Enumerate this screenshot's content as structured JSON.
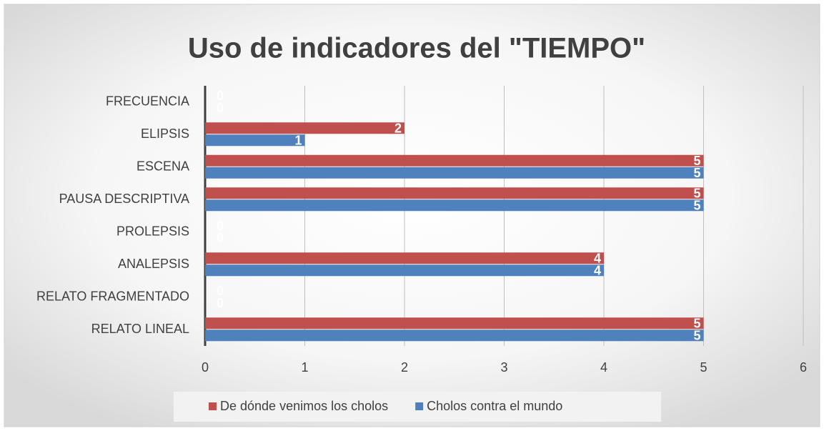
{
  "chart_data": {
    "type": "bar",
    "orientation": "horizontal",
    "title": "Uso de indicadores del \"TIEMPO\"",
    "categories": [
      "FRECUENCIA",
      "ELIPSIS",
      "ESCENA",
      "PAUSA DESCRIPTIVA",
      "PROLEPSIS",
      "ANALEPSIS",
      "RELATO FRAGMENTADO",
      "RELATO LINEAL"
    ],
    "series": [
      {
        "name": "De dónde venimos los cholos",
        "color": "#c0504d",
        "values": [
          0,
          2,
          5,
          5,
          0,
          4,
          0,
          5
        ]
      },
      {
        "name": "Cholos contra el mundo",
        "color": "#4f81bd",
        "values": [
          0,
          1,
          5,
          5,
          0,
          4,
          0,
          5
        ]
      }
    ],
    "xlim": [
      0,
      6
    ],
    "xticks": [
      0,
      1,
      2,
      3,
      4,
      5,
      6
    ],
    "grid": true,
    "legend": "bottom",
    "data_labels": true
  }
}
